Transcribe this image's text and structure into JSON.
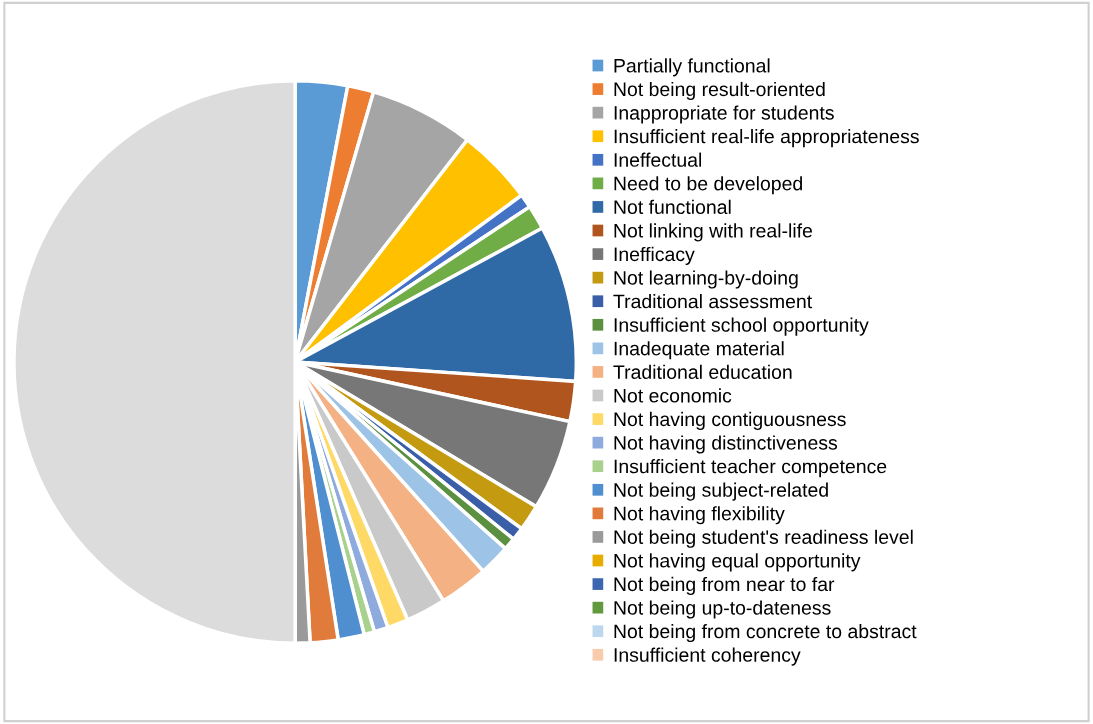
{
  "chart_data": {
    "type": "pie",
    "categories": [
      "Partially functional",
      "Not being result-oriented",
      "Inappropriate for students",
      "Insufficient real-life appropriateness",
      "Ineffectual",
      "Need to be developed",
      "Not functional",
      "Not linking with real-life",
      "Inefficacy",
      "Not learning-by-doing",
      "Traditional assessment",
      "Insufficient school opportunity",
      "Inadequate material",
      "Traditional education",
      "Not economic",
      "Not having contiguousness",
      "Not having distinctiveness",
      "Insufficient teacher competence",
      "Not being subject-related",
      "Not having flexibility",
      "Not being student's readiness level",
      "Not having equal opportunity",
      "Not being from near to far",
      "Not being up-to-dateness",
      "Not being from concrete to abstract",
      "Insufficient coherency",
      null
    ],
    "values": [
      3,
      1.5,
      6,
      4.4,
      0.8,
      1.4,
      9,
      2.3,
      5.2,
      1.5,
      0.75,
      0.7,
      1.8,
      2.8,
      2.3,
      1.2,
      0.8,
      0.6,
      1.5,
      1.6,
      0.85,
      0,
      0,
      0,
      0,
      0,
      50
    ],
    "colors": [
      "#5b9bd5",
      "#ed7d31",
      "#a5a5a5",
      "#ffc000",
      "#4472c4",
      "#70ad47",
      "#2f6aa6",
      "#b0551e",
      "#777777",
      "#c49a10",
      "#3a5fa8",
      "#5a9040",
      "#9dc3e6",
      "#f4b183",
      "#c9c9c9",
      "#ffd966",
      "#8faadc",
      "#a9d18e",
      "#4f8fd0",
      "#e07b3c",
      "#9a9a9a",
      "#e6ad00",
      "#3d66b0",
      "#62993e",
      "#bdd7ee",
      "#f8cbad",
      "#dcdcdc"
    ],
    "legend": "right"
  }
}
